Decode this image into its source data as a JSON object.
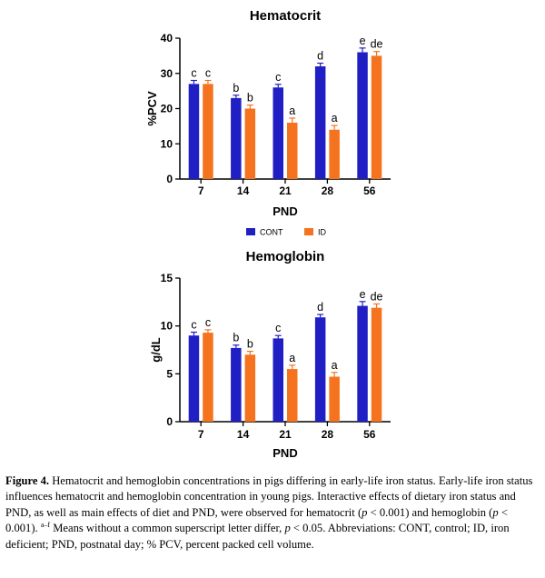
{
  "chart_data": [
    {
      "type": "bar",
      "title": "Hematocrit",
      "xlabel": "PND",
      "ylabel": "%PCV",
      "categories": [
        "7",
        "14",
        "21",
        "28",
        "56"
      ],
      "ylim": [
        0,
        40
      ],
      "yticks": [
        0,
        10,
        20,
        30,
        40
      ],
      "grid": false,
      "series": [
        {
          "name": "CONT",
          "color": "#1f1fc4",
          "values": [
            27,
            23,
            26,
            32,
            36
          ],
          "errors": [
            1.0,
            0.8,
            0.9,
            0.9,
            1.2
          ],
          "letters": [
            "c",
            "b",
            "c",
            "d",
            "e"
          ]
        },
        {
          "name": "ID",
          "color": "#f5731f",
          "values": [
            27,
            20,
            16,
            14,
            35
          ],
          "errors": [
            1.0,
            1.0,
            1.3,
            1.2,
            1.2
          ],
          "letters": [
            "c",
            "b",
            "a",
            "a",
            "de"
          ]
        }
      ]
    },
    {
      "type": "bar",
      "title": "Hemoglobin",
      "xlabel": "PND",
      "ylabel": "g/dL",
      "categories": [
        "7",
        "14",
        "21",
        "28",
        "56"
      ],
      "ylim": [
        0,
        15
      ],
      "yticks": [
        0,
        5,
        10,
        15
      ],
      "grid": false,
      "series": [
        {
          "name": "CONT",
          "color": "#1f1fc4",
          "values": [
            9.0,
            7.7,
            8.7,
            10.9,
            12.1
          ],
          "errors": [
            0.35,
            0.3,
            0.3,
            0.3,
            0.45
          ],
          "letters": [
            "c",
            "b",
            "c",
            "d",
            "e"
          ]
        },
        {
          "name": "ID",
          "color": "#f5731f",
          "values": [
            9.3,
            7.0,
            5.5,
            4.7,
            11.9
          ],
          "errors": [
            0.3,
            0.35,
            0.4,
            0.45,
            0.4
          ],
          "letters": [
            "c",
            "b",
            "a",
            "a",
            "de"
          ]
        }
      ]
    }
  ],
  "legend": {
    "placement": "between charts",
    "items": [
      {
        "label": "CONT",
        "color": "#1f1fc4"
      },
      {
        "label": "ID",
        "color": "#f5731f"
      }
    ]
  },
  "caption": {
    "label": "Figure 4.",
    "s1": " Hematocrit and hemoglobin concentrations in pigs differing in early-life iron status. Early-life iron status influences hematocrit and hemoglobin concentration in young pigs. Interactive effects of dietary iron status and PND, as well as main effects of diet and PND, were observed for hematocrit (",
    "p1": "p",
    "s2": " < 0.001) and hemoglobin (",
    "p2": "p",
    "s3": " < 0.001). ",
    "sup": "a–f",
    "s4": " Means without a common superscript letter differ, ",
    "p3": "p",
    "s5": " < 0.05. Abbreviations: CONT, control; ID, iron deficient; PND, postnatal day; % PCV, percent packed cell volume."
  }
}
